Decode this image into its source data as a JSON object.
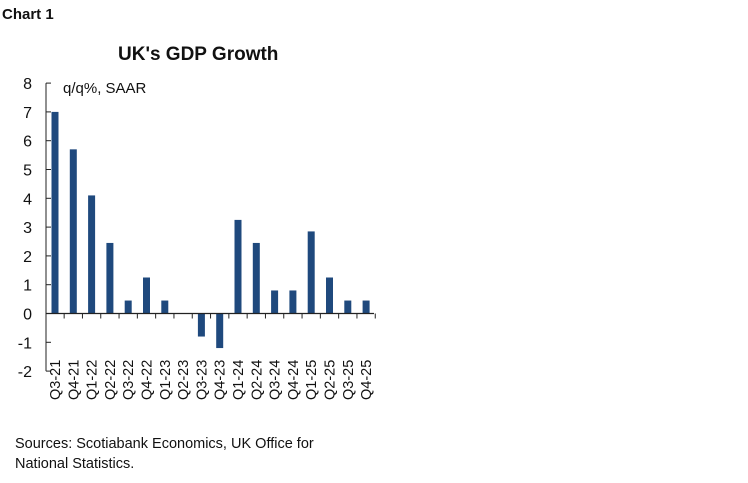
{
  "label": "Chart 1",
  "source": "Sources: Scotiabank Economics, UK Office for National Statistics.",
  "chart_data": {
    "type": "bar",
    "title": "UK's GDP Growth",
    "ylabel": "q/q%, SAAR",
    "ylim": [
      -2,
      8
    ],
    "yticks": [
      8,
      7,
      6,
      5,
      4,
      3,
      2,
      1,
      0,
      -1,
      -2
    ],
    "grid": false,
    "color": "#1f497d",
    "categories": [
      "Q3-21",
      "Q4-21",
      "Q1-22",
      "Q2-22",
      "Q3-22",
      "Q4-22",
      "Q1-23",
      "Q2-23",
      "Q3-23",
      "Q4-23",
      "Q1-24",
      "Q2-24",
      "Q3-24",
      "Q4-24",
      "Q1-25",
      "Q2-25",
      "Q3-25",
      "Q4-25"
    ],
    "values": [
      7.0,
      5.7,
      4.1,
      2.45,
      0.45,
      1.25,
      0.45,
      0.0,
      -0.8,
      -1.2,
      3.25,
      2.45,
      0.8,
      0.8,
      2.85,
      1.25,
      0.45,
      0.45
    ]
  }
}
